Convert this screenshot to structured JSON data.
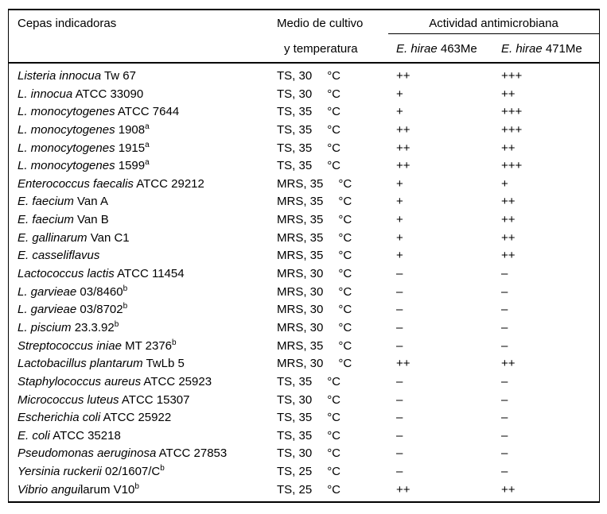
{
  "table": {
    "header": {
      "col_strains": "Cepas indicadoras",
      "col_medium_line1": "Medio de cultivo",
      "col_medium_line2": "y temperatura",
      "col_activity_group": "Actividad antimicrobiana",
      "col_activity_sub1_species": "E. hirae",
      "col_activity_sub1_strain": " 463Me",
      "col_activity_sub2_species": "E. hirae",
      "col_activity_sub2_strain": " 471Me"
    },
    "temperature_unit": "°C",
    "rows": [
      {
        "species": "Listeria innocua",
        "strain": " Tw 67",
        "sup": "",
        "medium": "TS, 30",
        "act_463Me": "++",
        "act_471Me": "+++"
      },
      {
        "species": "L. innocua",
        "strain": " ATCC 33090",
        "sup": "",
        "medium": "TS, 30",
        "act_463Me": "+",
        "act_471Me": "++"
      },
      {
        "species": "L. monocytogenes",
        "strain": " ATCC 7644",
        "sup": "",
        "medium": "TS, 35",
        "act_463Me": "+",
        "act_471Me": "+++"
      },
      {
        "species": "L. monocytogenes",
        "strain": " 1908",
        "sup": "a",
        "medium": "TS, 35",
        "act_463Me": "++",
        "act_471Me": "+++"
      },
      {
        "species": "L. monocytogenes",
        "strain": " 1915",
        "sup": "a",
        "medium": "TS, 35",
        "act_463Me": "++",
        "act_471Me": "++"
      },
      {
        "species": "L. monocytogenes",
        "strain": " 1599",
        "sup": "a",
        "medium": "TS, 35",
        "act_463Me": "++",
        "act_471Me": "+++"
      },
      {
        "species": "Enterococcus faecalis",
        "strain": " ATCC 29212",
        "sup": "",
        "medium": "MRS, 35",
        "act_463Me": "+",
        "act_471Me": "+"
      },
      {
        "species": "E. faecium",
        "strain": " Van A",
        "sup": "",
        "medium": "MRS, 35",
        "act_463Me": "+",
        "act_471Me": "++"
      },
      {
        "species": "E. faecium",
        "strain": " Van B",
        "sup": "",
        "medium": "MRS, 35",
        "act_463Me": "+",
        "act_471Me": "++"
      },
      {
        "species": "E. gallinarum",
        "strain": " Van C1",
        "sup": "",
        "medium": "MRS, 35",
        "act_463Me": "+",
        "act_471Me": "++"
      },
      {
        "species": "E. casseliflavus",
        "strain": "",
        "sup": "",
        "medium": "MRS, 35",
        "act_463Me": "+",
        "act_471Me": "++"
      },
      {
        "species": "Lactococcus lactis",
        "strain": " ATCC 11454",
        "sup": "",
        "medium": "MRS, 30",
        "act_463Me": "–",
        "act_471Me": "–"
      },
      {
        "species": "L. garvieae",
        "strain": " 03/8460",
        "sup": "b",
        "medium": "MRS, 30",
        "act_463Me": "–",
        "act_471Me": "–"
      },
      {
        "species": "L. garvieae",
        "strain": " 03/8702",
        "sup": "b",
        "medium": "MRS, 30",
        "act_463Me": "–",
        "act_471Me": "–"
      },
      {
        "species": "L. piscium",
        "strain": " 23.3.92",
        "sup": "b",
        "medium": "MRS, 30",
        "act_463Me": "–",
        "act_471Me": "–"
      },
      {
        "species": "Streptococcus iniae",
        "strain": " MT 2376",
        "sup": "b",
        "medium": "MRS, 35",
        "act_463Me": "–",
        "act_471Me": "–"
      },
      {
        "species": "Lactobacillus plantarum",
        "strain": " TwLb 5",
        "sup": "",
        "medium": "MRS, 30",
        "act_463Me": "++",
        "act_471Me": "++"
      },
      {
        "species": "Staphylococcus aureus",
        "strain": " ATCC 25923",
        "sup": "",
        "medium": "TS, 35",
        "act_463Me": "–",
        "act_471Me": "–"
      },
      {
        "species": "Micrococcus luteus",
        "strain": " ATCC 15307",
        "sup": "",
        "medium": "TS, 30",
        "act_463Me": "–",
        "act_471Me": "–"
      },
      {
        "species": "Escherichia coli",
        "strain": " ATCC 25922",
        "sup": "",
        "medium": "TS, 35",
        "act_463Me": "–",
        "act_471Me": "–"
      },
      {
        "species": "E. coli",
        "strain": " ATCC 35218",
        "sup": "",
        "medium": "TS, 35",
        "act_463Me": "–",
        "act_471Me": "–"
      },
      {
        "species": "Pseudomonas aeruginosa",
        "strain": " ATCC 27853",
        "sup": "",
        "medium": "TS, 30",
        "act_463Me": "–",
        "act_471Me": "–"
      },
      {
        "species": "Yersinia ruckerii",
        "strain": " 02/1607/C",
        "sup": "b",
        "medium": "TS, 25",
        "act_463Me": "–",
        "act_471Me": "–"
      },
      {
        "species": "Vibrio angui",
        "strain": "larum V10",
        "sup": "b",
        "medium": "TS, 25",
        "act_463Me": "++",
        "act_471Me": "++"
      }
    ]
  }
}
